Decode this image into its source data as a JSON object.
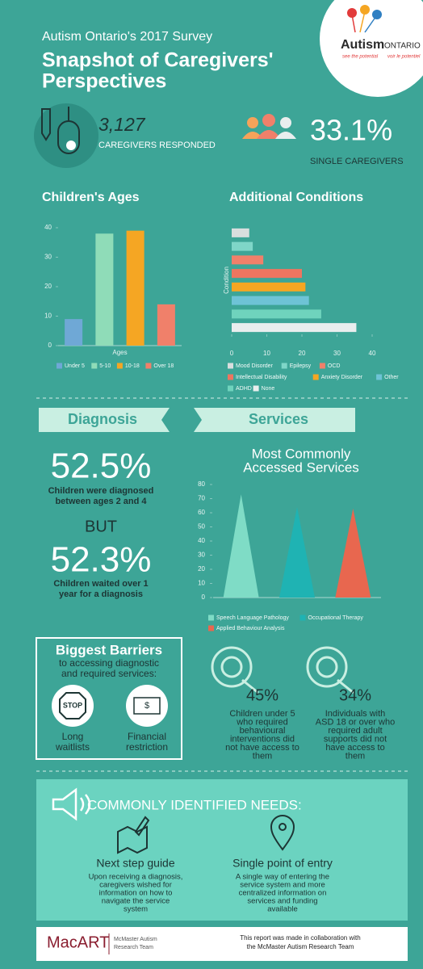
{
  "header": {
    "subtitle": "Autism Ontario's 2017 Survey",
    "title_lines": [
      "Snapshot of Caregivers'",
      "Perspectives"
    ],
    "logo": {
      "name_bold": "Autism",
      "name_caps": "ONTARIO",
      "tagline_en": "see the potential",
      "tagline_fr": "voir le potentiel"
    }
  },
  "stats": [
    {
      "value": "3,127",
      "label": "CAREGIVERS RESPONDED"
    },
    {
      "value": "33.1%",
      "label": "SINGLE CAREGIVERS"
    }
  ],
  "chart_data": [
    {
      "type": "bar",
      "title": "Children's Ages",
      "xlabel": "Ages",
      "categories": [
        "Under 5",
        "5-10",
        "10-18",
        "Over 18"
      ],
      "values": [
        9,
        38,
        39,
        14
      ],
      "colors": [
        "#6fa8d6",
        "#8fdcb8",
        "#f5a623",
        "#f0806a"
      ],
      "ylim": [
        0,
        40
      ],
      "yticks": [
        0,
        10,
        20,
        30,
        40
      ]
    },
    {
      "type": "barh",
      "title": "Additional Conditions",
      "ylabel": "Condition",
      "categories": [
        "Mood Disorder",
        "Epilepsy",
        "OCD",
        "Intellectual Disability",
        "Anxiety Disorder",
        "Other",
        "ADHD",
        "None"
      ],
      "values": [
        5,
        6,
        9,
        20,
        21,
        22,
        25.5,
        35.5
      ],
      "colors": [
        "#d8dede",
        "#7fd6c8",
        "#f0806a",
        "#ee7560",
        "#f5a623",
        "#6ec3d6",
        "#6fd3bd",
        "#e9eeee"
      ],
      "xlim": [
        0,
        40
      ],
      "xticks": [
        0,
        10,
        20,
        30,
        40
      ]
    },
    {
      "type": "triangle",
      "title_lines": [
        "Most Commonly",
        "Accessed Services"
      ],
      "categories": [
        "Speech Language Pathology",
        "Occupational Therapy",
        "Applied Behaviour Analysis"
      ],
      "values": [
        73,
        64,
        63
      ],
      "colors": [
        "#7fdcc6",
        "#1fb3b3",
        "#e8674f"
      ],
      "ylim": [
        0,
        80
      ],
      "yticks": [
        0,
        10,
        20,
        30,
        40,
        50,
        60,
        70,
        80
      ]
    }
  ],
  "diagnosis": {
    "heading": "Diagnosis",
    "facts": [
      {
        "value": "52.5%",
        "text_lines": [
          "Children were diagnosed",
          "between ages 2 and 4"
        ]
      },
      {
        "value": "52.3%",
        "text_lines": [
          "Children waited over 1",
          "year for a diagnosis"
        ]
      }
    ],
    "connector": "BUT"
  },
  "services": {
    "heading": "Services",
    "facts": [
      {
        "value": "45%",
        "text_lines": [
          "Children under 5",
          "who required",
          "behavioural",
          "interventions did",
          "not have access to",
          "them"
        ]
      },
      {
        "value": "34%",
        "text_lines": [
          "Individuals with",
          "ASD 18 or over who",
          "required adult",
          "supports did not",
          "have access to",
          "them"
        ]
      }
    ]
  },
  "barriers": {
    "title": "Biggest Barriers",
    "subtitle_lines": [
      "to accessing diagnostic",
      "and required services:"
    ],
    "items": [
      {
        "icon_text": "STOP",
        "label_lines": [
          "Long",
          "waitlists"
        ]
      },
      {
        "icon_text": "$",
        "label_lines": [
          "Financial",
          "restriction"
        ]
      }
    ]
  },
  "needs": {
    "title": "COMMONLY IDENTIFIED NEEDS:",
    "items": [
      {
        "title": "Next step guide",
        "text_lines": [
          "Upon receiving a diagnosis,",
          "caregivers wished for",
          "information on how to",
          "navigate the service",
          "system"
        ]
      },
      {
        "title": "Single point of entry",
        "text_lines": [
          "A single way of entering the",
          "service system and more",
          "centralized information on",
          "services and funding",
          "available"
        ]
      }
    ]
  },
  "footer": {
    "logo": "MacART",
    "logo_sub_lines": [
      "McMaster Autism",
      "Research Team"
    ],
    "note_lines": [
      "This report was made in collaboration with",
      "the McMaster Autism Research Team"
    ]
  }
}
